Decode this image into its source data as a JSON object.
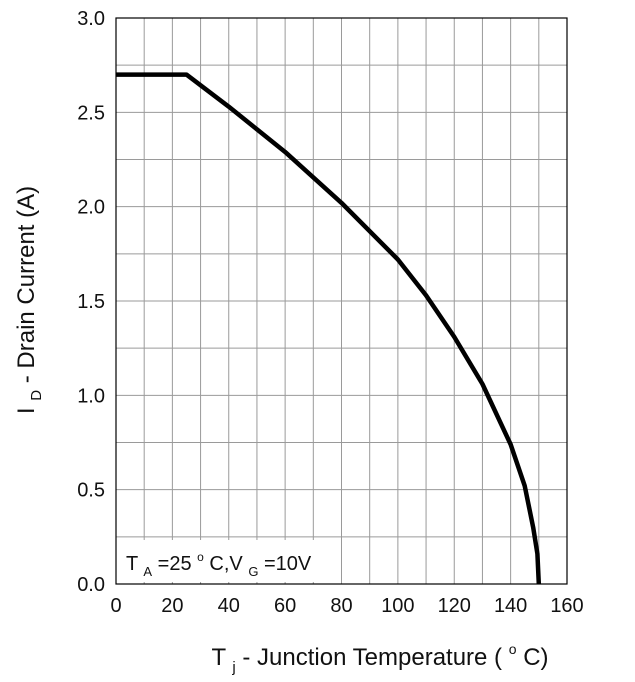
{
  "chart_data": {
    "type": "line",
    "xlabel": {
      "main": "T",
      "sub": "j",
      "rest": "- Junction Temperature (",
      "deg": "o",
      "unit": "C)"
    },
    "ylabel": {
      "main": "I",
      "sub": "D",
      "rest": "- Drain Current (A)"
    },
    "xlim": [
      0,
      160
    ],
    "ylim": [
      0,
      3.0
    ],
    "x_ticks": [
      0,
      20,
      40,
      60,
      80,
      100,
      120,
      140,
      160
    ],
    "y_ticks": [
      "0.0",
      "0.5",
      "1.0",
      "1.5",
      "2.0",
      "2.5",
      "3.0"
    ],
    "x_grid_step": 10,
    "y_grid_step": 0.25,
    "grid": true,
    "series": [
      {
        "color": "#000000",
        "x": [
          0,
          25,
          40,
          60,
          80,
          100,
          110,
          120,
          130,
          140,
          145,
          148,
          149.5,
          150
        ],
        "y": [
          2.7,
          2.7,
          2.53,
          2.29,
          2.02,
          1.72,
          1.53,
          1.31,
          1.06,
          0.74,
          0.52,
          0.3,
          0.16,
          0.0
        ]
      }
    ],
    "annotation": {
      "t": "T",
      "t_sub": "A",
      "eq1": "=25",
      "deg": "o",
      "c_v": "C,V",
      "v_sub": "G",
      "eq2": "=10V"
    }
  }
}
